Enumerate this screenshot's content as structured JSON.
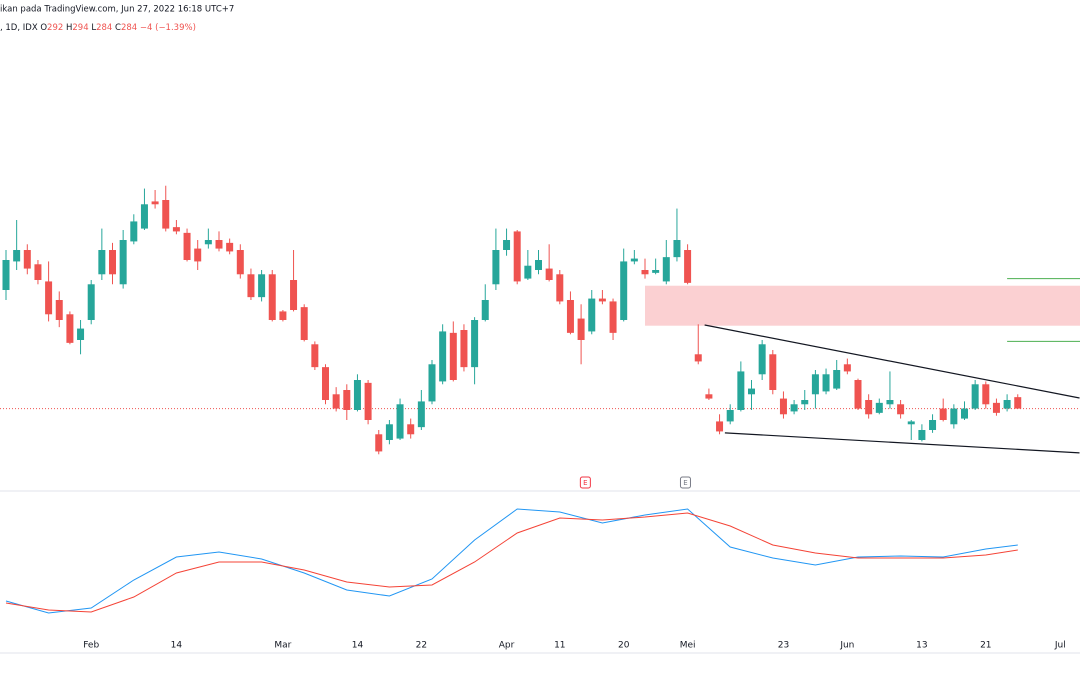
{
  "header": {
    "source": "ikan pada TradingView.com, Jun 27, 2022 16:18 UTC+7",
    "symbol": ", 1D, IDX",
    "o_label": "O",
    "h_label": "H",
    "l_label": "L",
    "c_label": "C",
    "change": "−4 (−1.39%)"
  },
  "chart_data": {
    "type": "candlestick",
    "categories": [
      null,
      null,
      null,
      null,
      null,
      null,
      null,
      null,
      "Feb",
      null,
      null,
      null,
      null,
      null,
      null,
      null,
      "14",
      null,
      null,
      null,
      null,
      null,
      null,
      null,
      null,
      null,
      "Mar",
      null,
      null,
      null,
      null,
      null,
      null,
      "14",
      null,
      null,
      null,
      null,
      null,
      "22",
      null,
      null,
      null,
      null,
      null,
      null,
      null,
      "Apr",
      null,
      null,
      null,
      null,
      "11",
      null,
      null,
      null,
      null,
      null,
      "20",
      null,
      null,
      null,
      null,
      null,
      "Mei",
      null,
      null,
      null,
      null,
      null,
      null,
      null,
      null,
      "23",
      null,
      null,
      null,
      null,
      null,
      "Jun",
      null,
      null,
      null,
      null,
      null,
      null,
      "13",
      null,
      null,
      null,
      null,
      null,
      "21",
      null,
      null,
      null,
      null,
      null,
      null,
      "Jul"
    ],
    "open": [
      367,
      387,
      395,
      385,
      373,
      360,
      350,
      332,
      346,
      378,
      395,
      371,
      401,
      410,
      429,
      430,
      411,
      407,
      396,
      399,
      402,
      400,
      395,
      378,
      362,
      378,
      352,
      374,
      355,
      329,
      313,
      294,
      297,
      283,
      302,
      266,
      262,
      263,
      273,
      271,
      289,
      303,
      337,
      339,
      313,
      346,
      371,
      395,
      408,
      375,
      381,
      382,
      378,
      360,
      347,
      338,
      361,
      359,
      346,
      387,
      381,
      379,
      373,
      390,
      395,
      322,
      294,
      275,
      275,
      283,
      294,
      308,
      322,
      291,
      282,
      287,
      294,
      296,
      298,
      315,
      304,
      290,
      281,
      287,
      287,
      273,
      262,
      269,
      284,
      273,
      277,
      284,
      301,
      288,
      284,
      292,
      null,
      null,
      null,
      null
    ],
    "high": [
      395,
      416,
      399,
      388,
      387,
      366,
      352,
      346,
      374,
      410,
      400,
      409,
      420,
      438,
      437,
      440,
      416,
      410,
      402,
      410,
      408,
      403,
      399,
      382,
      381,
      381,
      353,
      395,
      357,
      331,
      315,
      299,
      301,
      308,
      304,
      269,
      276,
      291,
      277,
      297,
      318,
      343,
      345,
      343,
      348,
      371,
      410,
      410,
      409,
      395,
      395,
      399,
      381,
      366,
      357,
      367,
      367,
      361,
      396,
      395,
      389,
      389,
      402,
      424,
      399,
      343,
      298,
      280,
      287,
      317,
      304,
      332,
      325,
      296,
      290,
      297,
      311,
      312,
      318,
      319,
      305,
      294,
      291,
      310,
      290,
      276,
      273,
      280,
      291,
      287,
      289,
      304,
      303,
      291,
      294,
      294,
      null,
      null,
      null,
      null
    ],
    "low": [
      360,
      381,
      378,
      371,
      345,
      341,
      329,
      322,
      343,
      374,
      371,
      368,
      399,
      409,
      424,
      408,
      406,
      387,
      381,
      396,
      394,
      392,
      375,
      360,
      359,
      345,
      345,
      352,
      331,
      311,
      287,
      282,
      276,
      282,
      273,
      252,
      259,
      262,
      263,
      269,
      287,
      301,
      303,
      310,
      301,
      345,
      367,
      391,
      371,
      374,
      378,
      373,
      357,
      336,
      315,
      336,
      357,
      332,
      345,
      385,
      375,
      378,
      371,
      387,
      371,
      315,
      290,
      266,
      273,
      282,
      283,
      304,
      294,
      277,
      280,
      283,
      284,
      294,
      297,
      308,
      283,
      277,
      280,
      284,
      277,
      262,
      261,
      267,
      275,
      270,
      276,
      283,
      284,
      279,
      282,
      284,
      null,
      null,
      null,
      null
    ],
    "close": [
      388,
      395,
      382,
      374,
      350,
      346,
      330,
      340,
      371,
      395,
      378,
      402,
      415,
      427,
      427,
      410,
      408,
      388,
      387,
      402,
      396,
      394,
      378,
      362,
      378,
      346,
      346,
      353,
      332,
      313,
      290,
      284,
      283,
      304,
      276,
      254,
      273,
      287,
      266,
      289,
      315,
      338,
      304,
      313,
      346,
      360,
      395,
      402,
      373,
      384,
      388,
      374,
      359,
      337,
      332,
      361,
      359,
      337,
      387,
      389,
      378,
      381,
      390,
      402,
      372,
      317,
      291,
      268,
      283,
      310,
      298,
      329,
      297,
      280,
      287,
      290,
      308,
      308,
      311,
      310,
      284,
      280,
      288,
      290,
      280,
      275,
      269,
      276,
      276,
      284,
      284,
      301,
      287,
      281,
      290,
      284,
      null,
      null,
      null,
      null
    ],
    "up_color": "#26a69a",
    "down_color": "#ef5350",
    "ylim": [
      227,
      570
    ],
    "zone": {
      "from_index": 60,
      "low": 342,
      "high": 370,
      "color": "#fbd0d2"
    },
    "levels": {
      "from_index": 94,
      "values": [
        375,
        331
      ],
      "color": "#4caf50"
    },
    "trendlines": [
      [
        [
          65.6,
          342.5
        ],
        [
          100.8,
          291.4
        ]
      ],
      [
        [
          67.5,
          267
        ],
        [
          100.8,
          253
        ]
      ]
    ],
    "annotations": [
      {
        "label": "E",
        "x": 54.4,
        "color": "#f23645"
      },
      {
        "label": "E",
        "x": 63.8,
        "color": "#787b86"
      }
    ],
    "indicator": {
      "ylim": [
        0,
        130
      ],
      "x": [
        0,
        4,
        8,
        12,
        16,
        20,
        24,
        28,
        32,
        36,
        40,
        44,
        48,
        52,
        56,
        60,
        64,
        68,
        72,
        76,
        80,
        84,
        88,
        92,
        95
      ],
      "series": [
        {
          "color": "#2196f3",
          "values": [
            24,
            12,
            17,
            45,
            68,
            73,
            66,
            52,
            35,
            29,
            46,
            85,
            116,
            113,
            102,
            110,
            116,
            78,
            67,
            60,
            68,
            69,
            68,
            76,
            80
          ]
        },
        {
          "color": "#f44336",
          "values": [
            22,
            15,
            13,
            28,
            52,
            63,
            63,
            55,
            43,
            38,
            40,
            63,
            92,
            107,
            105,
            108,
            112,
            99,
            80,
            72,
            67,
            67,
            67,
            70,
            75
          ]
        }
      ]
    }
  }
}
